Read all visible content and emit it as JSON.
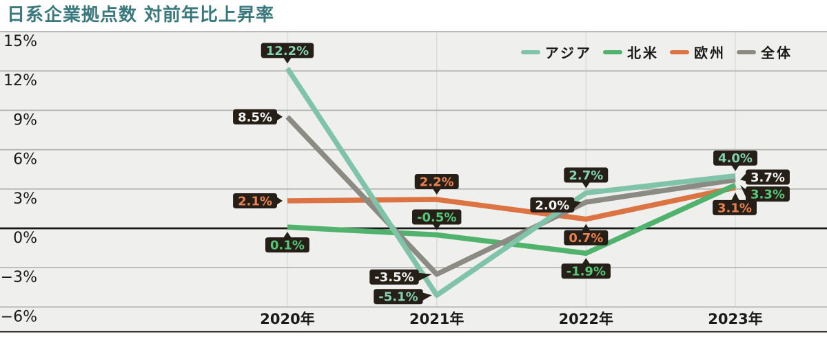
{
  "title": "日系企業拠点数 対前年比上昇率",
  "colors": {
    "title": "#39787c",
    "page_bg": "#ffffff",
    "plot_bg": "#efefed",
    "grid": "#b1b1af",
    "grid_vertical": "#d9d9d7",
    "zero_line": "#161616",
    "axis_text": "#1a1a1a",
    "callout_bg": "#251f18",
    "bottom_border": "#3c3a36"
  },
  "chart_data": {
    "type": "line",
    "title": "日系企業拠点数 対前年比上昇率",
    "x": [
      "2020年",
      "2021年",
      "2022年",
      "2023年"
    ],
    "ylim": [
      -6,
      15
    ],
    "yticks": [
      "15%",
      "12%",
      "9%",
      "6%",
      "3%",
      "0%",
      "−3%",
      "−6%"
    ],
    "ytick_values": [
      15,
      12,
      9,
      6,
      3,
      0,
      -3,
      -6
    ],
    "grid": true,
    "legend_position": "top-right",
    "draw_order": [
      2,
      1,
      3,
      0
    ],
    "series": [
      {
        "id": "asia",
        "name": "アジア",
        "color": "#7fc3a8",
        "label_color": "#85d1b0",
        "values": [
          12.2,
          -5.1,
          2.7,
          4.0
        ],
        "labels": [
          "12.2%",
          "-5.1%",
          "2.7%",
          "4.0%"
        ],
        "label_anchors": [
          "top",
          "left",
          "top",
          "top"
        ],
        "label_nudges": [
          [
            0,
            0
          ],
          [
            -5,
            2
          ],
          [
            0,
            0
          ],
          [
            0,
            0
          ]
        ]
      },
      {
        "id": "north-america",
        "name": "北米",
        "color": "#50b26c",
        "label_color": "#57c878",
        "values": [
          0.1,
          -0.5,
          -1.9,
          3.3
        ],
        "labels": [
          "0.1%",
          "-0.5%",
          "-1.9%",
          "3.3%"
        ],
        "label_anchors": [
          "bottom",
          "top",
          "bottom",
          "right"
        ],
        "label_nudges": [
          [
            0,
            0
          ],
          [
            0,
            0
          ],
          [
            0,
            0
          ],
          [
            0,
            13
          ]
        ]
      },
      {
        "id": "europe",
        "name": "欧州",
        "color": "#dc7342",
        "label_color": "#e9824e",
        "values": [
          2.1,
          2.2,
          0.7,
          3.1
        ],
        "labels": [
          "2.1%",
          "2.2%",
          "0.7%",
          "3.1%"
        ],
        "label_anchors": [
          "left",
          "top",
          "bottom",
          "bottom"
        ],
        "label_nudges": [
          [
            0,
            0
          ],
          [
            0,
            0
          ],
          [
            0,
            1
          ],
          [
            -1,
            3
          ]
        ]
      },
      {
        "id": "overall",
        "name": "全体",
        "color": "#8b8b84",
        "label_color": "#f5f5f3",
        "values": [
          8.5,
          -3.5,
          2.0,
          3.7
        ],
        "labels": [
          "8.5%",
          "-3.5%",
          "2.0%",
          "3.7%"
        ],
        "label_anchors": [
          "left",
          "left",
          "left",
          "right"
        ],
        "label_nudges": [
          [
            0,
            0
          ],
          [
            -11,
            4
          ],
          [
            -2,
            4
          ],
          [
            0,
            -4
          ]
        ]
      }
    ]
  }
}
